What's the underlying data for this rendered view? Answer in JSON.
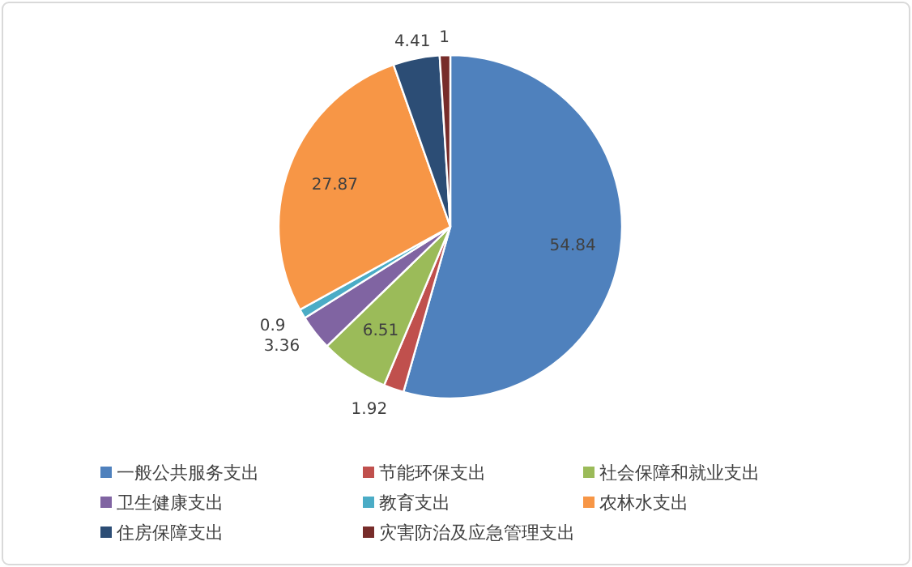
{
  "chart_data": {
    "type": "pie",
    "categories": [
      "一般公共服务支出",
      "节能环保支出",
      "社会保障和就业支出",
      "卫生健康支出",
      "教育支出",
      "农林水支出",
      "住房保障支出",
      "灾害防治及应急管理支出"
    ],
    "values": [
      54.84,
      1.92,
      6.51,
      3.36,
      0.9,
      27.87,
      4.41,
      1
    ],
    "colors": [
      "#4f81bd",
      "#c0504d",
      "#9bbb59",
      "#8064a2",
      "#4bacc6",
      "#f79646",
      "#2c4d75",
      "#772c2a"
    ],
    "data_labels": true,
    "legend": "bottom"
  }
}
